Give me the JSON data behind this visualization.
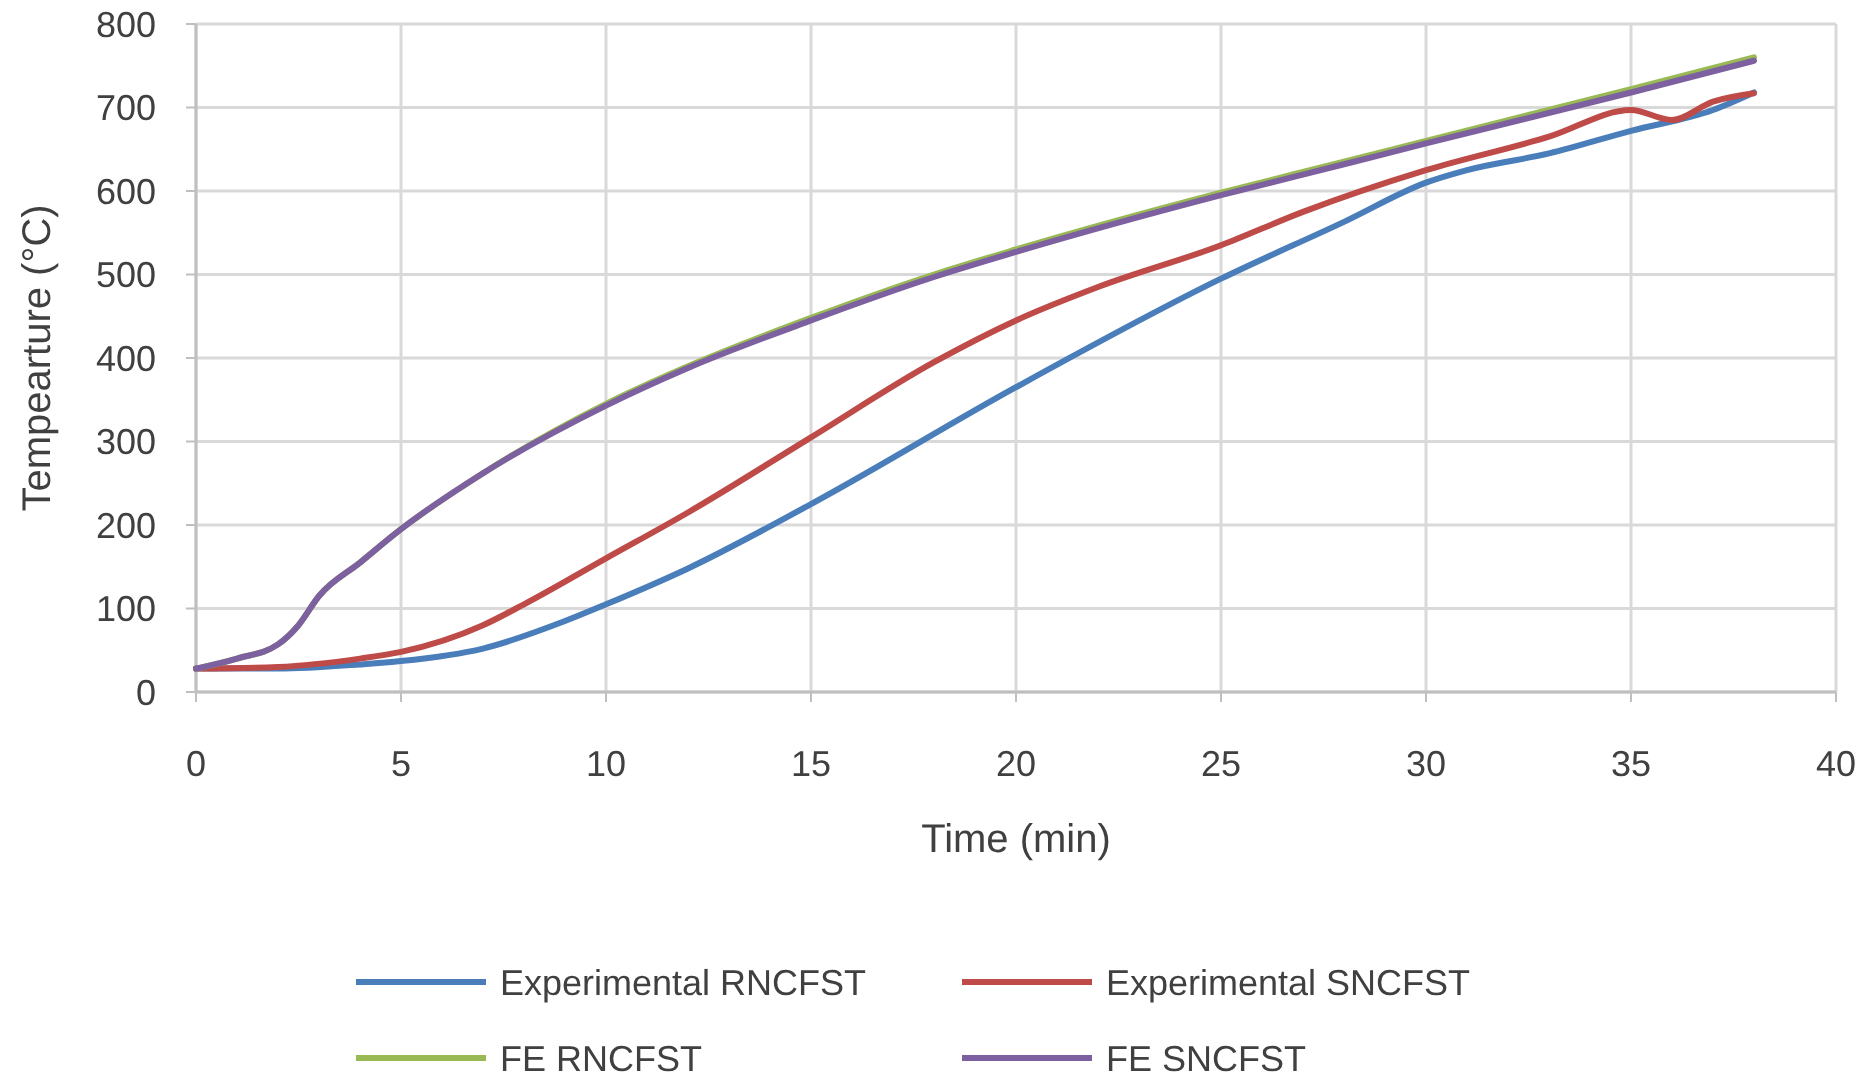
{
  "chart_data": {
    "type": "line",
    "xlabel": "Time (min)",
    "ylabel": "Tempearture (°C)",
    "xlim": [
      0,
      40
    ],
    "ylim": [
      0,
      800
    ],
    "xticks": [
      0,
      5,
      10,
      15,
      20,
      25,
      30,
      35,
      40
    ],
    "yticks": [
      0,
      100,
      200,
      300,
      400,
      500,
      600,
      700,
      800
    ],
    "grid": true,
    "legend": "bottom",
    "marker": "none",
    "line_style": "solid",
    "series": [
      {
        "name": "Experimental RNCFST",
        "color": "#4a7ebb",
        "x": [
          0,
          2,
          4,
          5,
          7,
          9,
          10,
          12,
          15,
          20,
          25,
          28,
          30,
          31,
          33,
          35,
          37,
          38
        ],
        "values": [
          28,
          28,
          33,
          37,
          52,
          85,
          105,
          148,
          225,
          365,
          495,
          563,
          610,
          625,
          645,
          672,
          697,
          718
        ]
      },
      {
        "name": "Experimental SNCFST",
        "color": "#be4b48",
        "x": [
          0,
          2,
          4,
          5,
          7,
          8,
          10,
          12,
          15,
          18,
          20,
          22,
          25,
          27,
          30,
          33,
          35,
          36,
          37,
          38
        ],
        "values": [
          28,
          30,
          40,
          48,
          80,
          105,
          160,
          215,
          305,
          395,
          445,
          485,
          535,
          575,
          625,
          665,
          697,
          685,
          707,
          717
        ]
      },
      {
        "name": "FE RNCFST",
        "color": "#98b954",
        "x": [
          0,
          1,
          2,
          2.5,
          3,
          4,
          5,
          7,
          10,
          12,
          15,
          18,
          20,
          25,
          28,
          30,
          35,
          38
        ],
        "values": [
          28,
          40,
          57,
          80,
          115,
          155,
          195,
          262,
          345,
          390,
          448,
          500,
          530,
          598,
          635,
          660,
          722,
          760
        ]
      },
      {
        "name": "FE SNCFST",
        "color": "#7d60a0",
        "x": [
          0,
          1,
          2,
          2.5,
          3,
          4,
          5,
          7,
          10,
          12,
          15,
          18,
          20,
          25,
          28,
          30,
          35,
          38
        ],
        "values": [
          28,
          40,
          57,
          80,
          115,
          155,
          195,
          262,
          343,
          388,
          445,
          497,
          527,
          595,
          632,
          657,
          718,
          756
        ]
      }
    ]
  }
}
